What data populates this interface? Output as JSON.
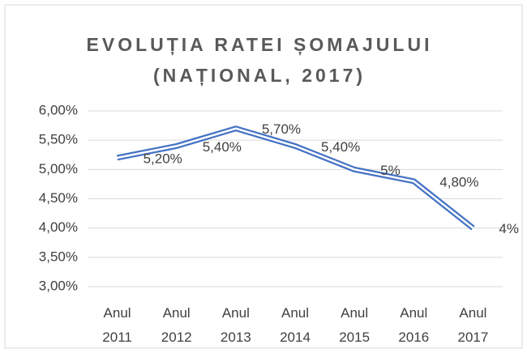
{
  "chart_data": {
    "type": "line",
    "title": "EVOLUȚIA RATEI ȘOMAJULUI (NAȚIONAL, 2017)",
    "categories": [
      "Anul 2011",
      "Anul 2012",
      "Anul 2013",
      "Anul 2014",
      "Anul 2015",
      "Anul 2016",
      "Anul 2017"
    ],
    "values": [
      5.2,
      5.4,
      5.7,
      5.4,
      5,
      4.8,
      4
    ],
    "value_labels": [
      "5,20%",
      "5,40%",
      "5,70%",
      "5,40%",
      "5%",
      "4,80%",
      "4%"
    ],
    "color": "#4472c4",
    "ylim": [
      3,
      6
    ],
    "yticks": [
      {
        "value": 3,
        "label": "3,00%"
      },
      {
        "value": 3.5,
        "label": "3,50%"
      },
      {
        "value": 4,
        "label": "4,00%"
      },
      {
        "value": 4.5,
        "label": "4,50%"
      },
      {
        "value": 5,
        "label": "5,00%"
      },
      {
        "value": 5.5,
        "label": "5,50%"
      },
      {
        "value": 6,
        "label": "6,00%"
      }
    ],
    "grid": true
  }
}
